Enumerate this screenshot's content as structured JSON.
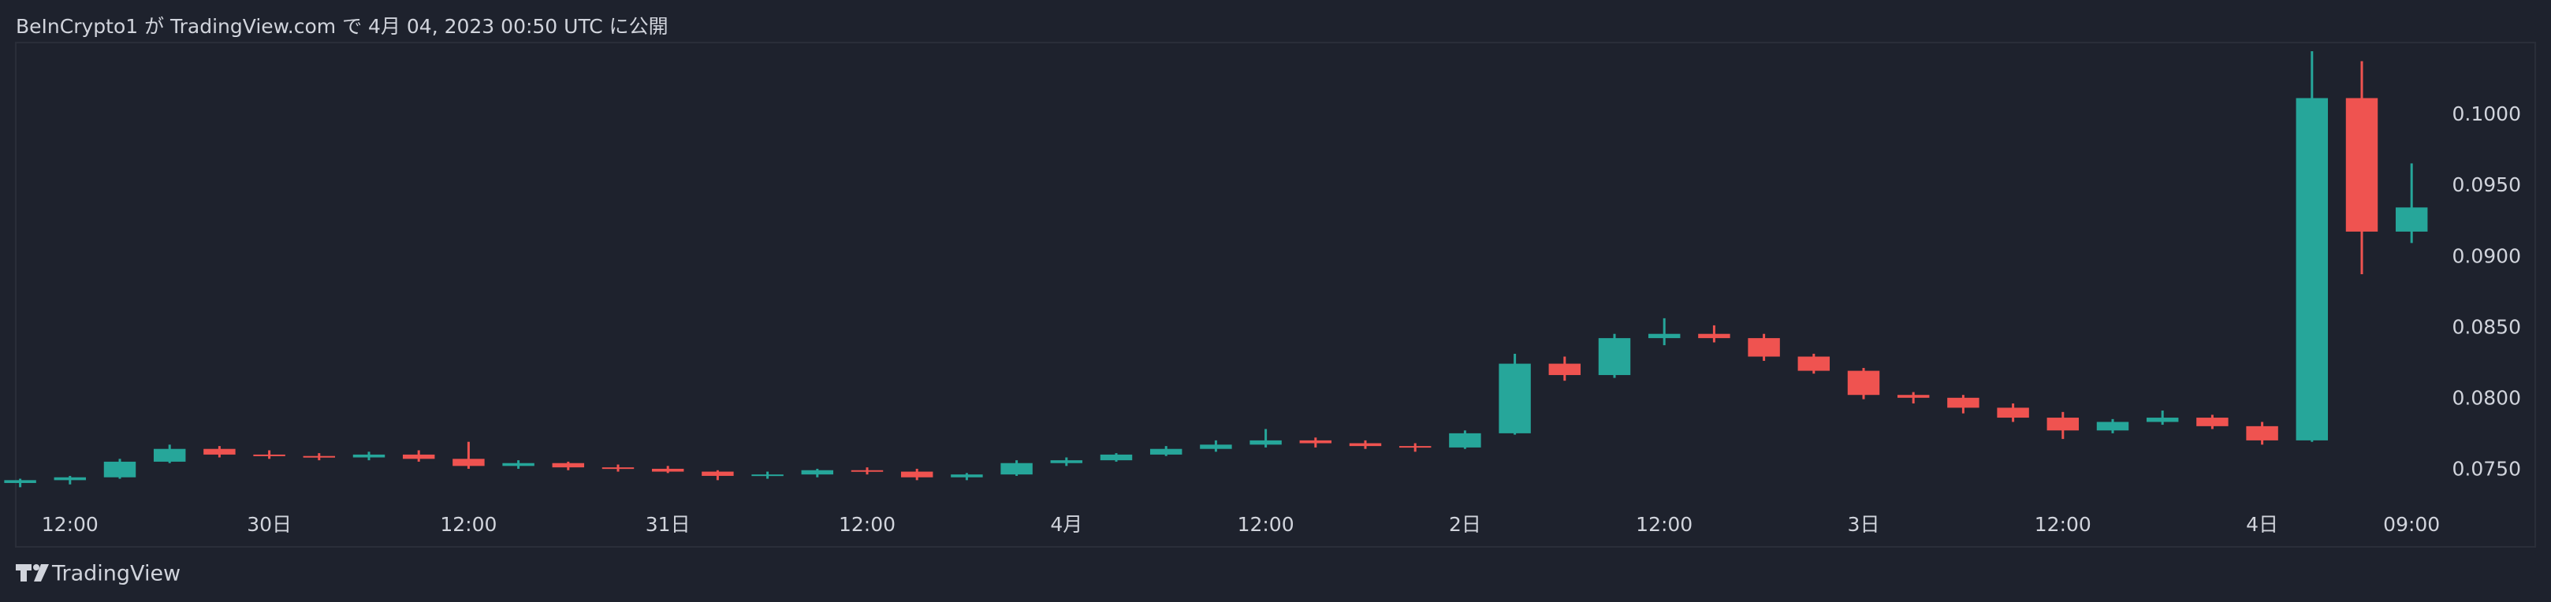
{
  "header": {
    "title": "BeInCrypto1 が TradingView.com で 4月 04, 2023 00:50 UTC に公開"
  },
  "footer": {
    "logo": "TradingView"
  },
  "chart_data": {
    "type": "candlestick",
    "categories": [
      null,
      "12:00",
      null,
      null,
      null,
      "30日",
      null,
      null,
      null,
      "12:00",
      null,
      null,
      null,
      "31日",
      null,
      null,
      null,
      "12:00",
      null,
      null,
      null,
      "4月",
      null,
      null,
      null,
      "12:00",
      null,
      null,
      null,
      "2日",
      null,
      null,
      null,
      "12:00",
      null,
      null,
      null,
      "3日",
      null,
      null,
      null,
      "12:00",
      null,
      null,
      null,
      "4日",
      null,
      null,
      "09:00"
    ],
    "open": [
      0.0741,
      0.0743,
      0.0745,
      0.0756,
      0.0765,
      0.0761,
      0.076,
      0.0759,
      0.0761,
      0.0758,
      0.0753,
      0.0755,
      0.0752,
      0.0751,
      0.0749,
      0.0746,
      0.0747,
      0.075,
      0.0749,
      0.0745,
      0.0747,
      0.0755,
      0.0757,
      0.0761,
      0.0765,
      0.0768,
      0.0771,
      0.0769,
      0.0767,
      0.0766,
      0.0776,
      0.0825,
      0.0817,
      0.0843,
      0.0846,
      0.0843,
      0.083,
      0.082,
      0.0803,
      0.0801,
      0.0794,
      0.0787,
      0.0778,
      0.0784,
      0.0787,
      0.0781,
      0.0771,
      0.1012,
      0.0918
    ],
    "high": [
      0.0744,
      0.0746,
      0.0758,
      0.0768,
      0.0767,
      0.0764,
      0.0762,
      0.0763,
      0.0764,
      0.077,
      0.0757,
      0.0756,
      0.0754,
      0.0753,
      0.075,
      0.0749,
      0.0751,
      0.0752,
      0.0751,
      0.0748,
      0.0757,
      0.0759,
      0.0762,
      0.0767,
      0.0771,
      0.0779,
      0.0773,
      0.0771,
      0.0769,
      0.0778,
      0.0832,
      0.083,
      0.0846,
      0.0857,
      0.0852,
      0.0846,
      0.0832,
      0.0822,
      0.0805,
      0.0803,
      0.0797,
      0.0791,
      0.0786,
      0.0792,
      0.0789,
      0.0784,
      0.1045,
      0.1038,
      0.0966
    ],
    "low": [
      0.0738,
      0.074,
      0.0744,
      0.0755,
      0.0759,
      0.0758,
      0.0757,
      0.0757,
      0.0756,
      0.0751,
      0.0751,
      0.075,
      0.0749,
      0.0748,
      0.0743,
      0.0744,
      0.0745,
      0.0747,
      0.0743,
      0.0743,
      0.0746,
      0.0753,
      0.0756,
      0.076,
      0.0763,
      0.0766,
      0.0766,
      0.0765,
      0.0763,
      0.0765,
      0.0775,
      0.0813,
      0.0815,
      0.0838,
      0.084,
      0.0827,
      0.0818,
      0.08,
      0.0797,
      0.079,
      0.0784,
      0.0772,
      0.0776,
      0.0782,
      0.0779,
      0.0768,
      0.077,
      0.0888,
      0.091
    ],
    "close": [
      0.0743,
      0.0745,
      0.0756,
      0.0765,
      0.0761,
      0.076,
      0.0759,
      0.0761,
      0.0758,
      0.0753,
      0.0755,
      0.0752,
      0.0751,
      0.0749,
      0.0746,
      0.0747,
      0.075,
      0.0749,
      0.0745,
      0.0747,
      0.0755,
      0.0757,
      0.0761,
      0.0765,
      0.0768,
      0.0771,
      0.0769,
      0.0767,
      0.0766,
      0.0776,
      0.0825,
      0.0817,
      0.0843,
      0.0846,
      0.0843,
      0.083,
      0.082,
      0.0803,
      0.0801,
      0.0794,
      0.0787,
      0.0778,
      0.0784,
      0.0787,
      0.0781,
      0.0771,
      0.1012,
      0.0918,
      0.0935
    ],
    "up_color": "#26a69a",
    "down_color": "#ef5350",
    "ylim": [
      0.0726,
      0.105
    ],
    "yticks": [
      {
        "value": 0.075,
        "label": "0.0750"
      },
      {
        "value": 0.08,
        "label": "0.0800"
      },
      {
        "value": 0.085,
        "label": "0.0850"
      },
      {
        "value": 0.09,
        "label": "0.0900"
      },
      {
        "value": 0.095,
        "label": "0.0950"
      },
      {
        "value": 0.1,
        "label": "0.1000"
      }
    ]
  }
}
